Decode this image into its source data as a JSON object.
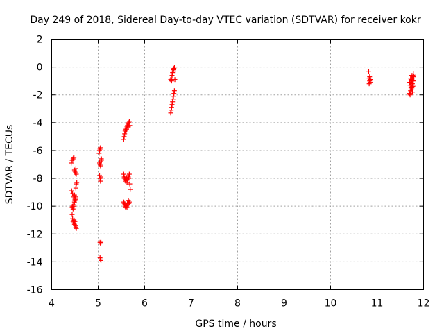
{
  "chart_data": {
    "type": "scatter",
    "title": "Day 249 of 2018, Sidereal Day-to-day VTEC variation (SDTVAR) for receiver kokr",
    "xlabel": "GPS time / hours",
    "ylabel": "SDTVAR / TECUs",
    "xlim": [
      4,
      12
    ],
    "ylim": [
      -16,
      2
    ],
    "xticks": [
      4,
      5,
      6,
      7,
      8,
      9,
      10,
      11,
      12
    ],
    "yticks": [
      -16,
      -14,
      -12,
      -10,
      -8,
      -6,
      -4,
      -2,
      0,
      2
    ],
    "grid": true,
    "marker": "+",
    "color": "#ff0000",
    "series": [
      {
        "name": "SDTVAR",
        "x": [
          4.42,
          4.44,
          4.46,
          4.47,
          4.48,
          4.49,
          4.5,
          4.51,
          4.52,
          4.53,
          4.43,
          4.45,
          4.47,
          4.48,
          4.49,
          4.5,
          4.51,
          4.52,
          4.53,
          4.54,
          4.44,
          4.45,
          4.46,
          4.47,
          4.48,
          4.49,
          4.5,
          4.51,
          4.52,
          4.44,
          4.45,
          4.46,
          4.47,
          4.48,
          4.49,
          4.5,
          4.51,
          4.52,
          4.53,
          5.02,
          5.03,
          5.04,
          5.05,
          5.06,
          5.07,
          5.03,
          5.04,
          5.05,
          5.06,
          5.07,
          5.03,
          5.04,
          5.05,
          5.06,
          5.04,
          5.05,
          5.06,
          5.04,
          5.05,
          5.06,
          5.55,
          5.56,
          5.57,
          5.58,
          5.59,
          5.6,
          5.61,
          5.62,
          5.63,
          5.64,
          5.65,
          5.66,
          5.67,
          5.68,
          5.55,
          5.56,
          5.57,
          5.58,
          5.59,
          5.6,
          5.61,
          5.62,
          5.63,
          5.64,
          5.65,
          5.66,
          5.67,
          5.68,
          5.69,
          5.55,
          5.56,
          5.57,
          5.58,
          5.59,
          5.6,
          5.61,
          5.62,
          5.63,
          5.64,
          5.65,
          5.66,
          5.67,
          6.56,
          6.57,
          6.58,
          6.59,
          6.6,
          6.61,
          6.62,
          6.63,
          6.64,
          6.56,
          6.57,
          6.58,
          6.59,
          6.6,
          6.61,
          6.62,
          6.63,
          6.64,
          6.65,
          10.82,
          10.83,
          10.84,
          10.85,
          10.86,
          10.83,
          10.84,
          10.85,
          11.7,
          11.71,
          11.72,
          11.73,
          11.74,
          11.75,
          11.76,
          11.77,
          11.78,
          11.79,
          11.71,
          11.72,
          11.73,
          11.74,
          11.75,
          11.76,
          11.77,
          11.78,
          11.7,
          11.72,
          11.74,
          11.76,
          11.78,
          11.75
        ],
        "y": [
          -6.9,
          -6.7,
          -6.6,
          -6.5,
          -6.5,
          -7.4,
          -7.5,
          -7.6,
          -7.3,
          -7.7,
          -8.9,
          -9.1,
          -9.3,
          -9.4,
          -9.2,
          -9.5,
          -9.4,
          -8.7,
          -8.4,
          -8.3,
          -10.1,
          -10.0,
          -10.2,
          -9.9,
          -10.0,
          -9.7,
          -9.6,
          -9.5,
          -9.3,
          -10.6,
          -10.9,
          -11.1,
          -11.2,
          -11.0,
          -11.3,
          -11.1,
          -11.4,
          -11.5,
          -11.6,
          -6.2,
          -6.0,
          -5.9,
          -5.8,
          -6.6,
          -6.7,
          -6.9,
          -7.0,
          -7.1,
          -6.8,
          -6.6,
          -7.8,
          -8.0,
          -8.2,
          -7.9,
          -12.6,
          -12.7,
          -12.6,
          -13.7,
          -13.8,
          -13.9,
          -5.2,
          -5.0,
          -4.8,
          -4.6,
          -4.5,
          -4.4,
          -4.5,
          -4.3,
          -4.2,
          -4.1,
          -4.3,
          -4.0,
          -3.9,
          -4.2,
          -7.7,
          -7.9,
          -8.0,
          -8.1,
          -8.2,
          -7.9,
          -8.0,
          -8.3,
          -8.1,
          -7.8,
          -7.9,
          -8.0,
          -7.7,
          -8.4,
          -8.8,
          -9.7,
          -9.8,
          -9.9,
          -10.0,
          -10.1,
          -9.9,
          -10.0,
          -10.1,
          -9.8,
          -9.9,
          -9.6,
          -9.8,
          -9.7,
          -3.3,
          -3.1,
          -2.9,
          -2.7,
          -2.5,
          -2.3,
          -2.1,
          -1.9,
          -1.7,
          -0.9,
          -0.8,
          -1.0,
          -0.6,
          -0.4,
          -0.3,
          -0.2,
          -0.1,
          0.0,
          -0.9,
          -0.3,
          -0.8,
          -1.0,
          -1.1,
          -0.9,
          -1.2,
          -0.7,
          -0.9,
          -1.9,
          -2.0,
          -1.7,
          -1.5,
          -1.2,
          -1.0,
          -0.8,
          -0.6,
          -0.5,
          -0.7,
          -1.3,
          -1.1,
          -0.9,
          -0.6,
          -1.5,
          -1.2,
          -1.4,
          -1.0,
          -1.1,
          -0.8,
          -1.6,
          -1.8,
          -1.3,
          -0.9
        ]
      }
    ]
  }
}
